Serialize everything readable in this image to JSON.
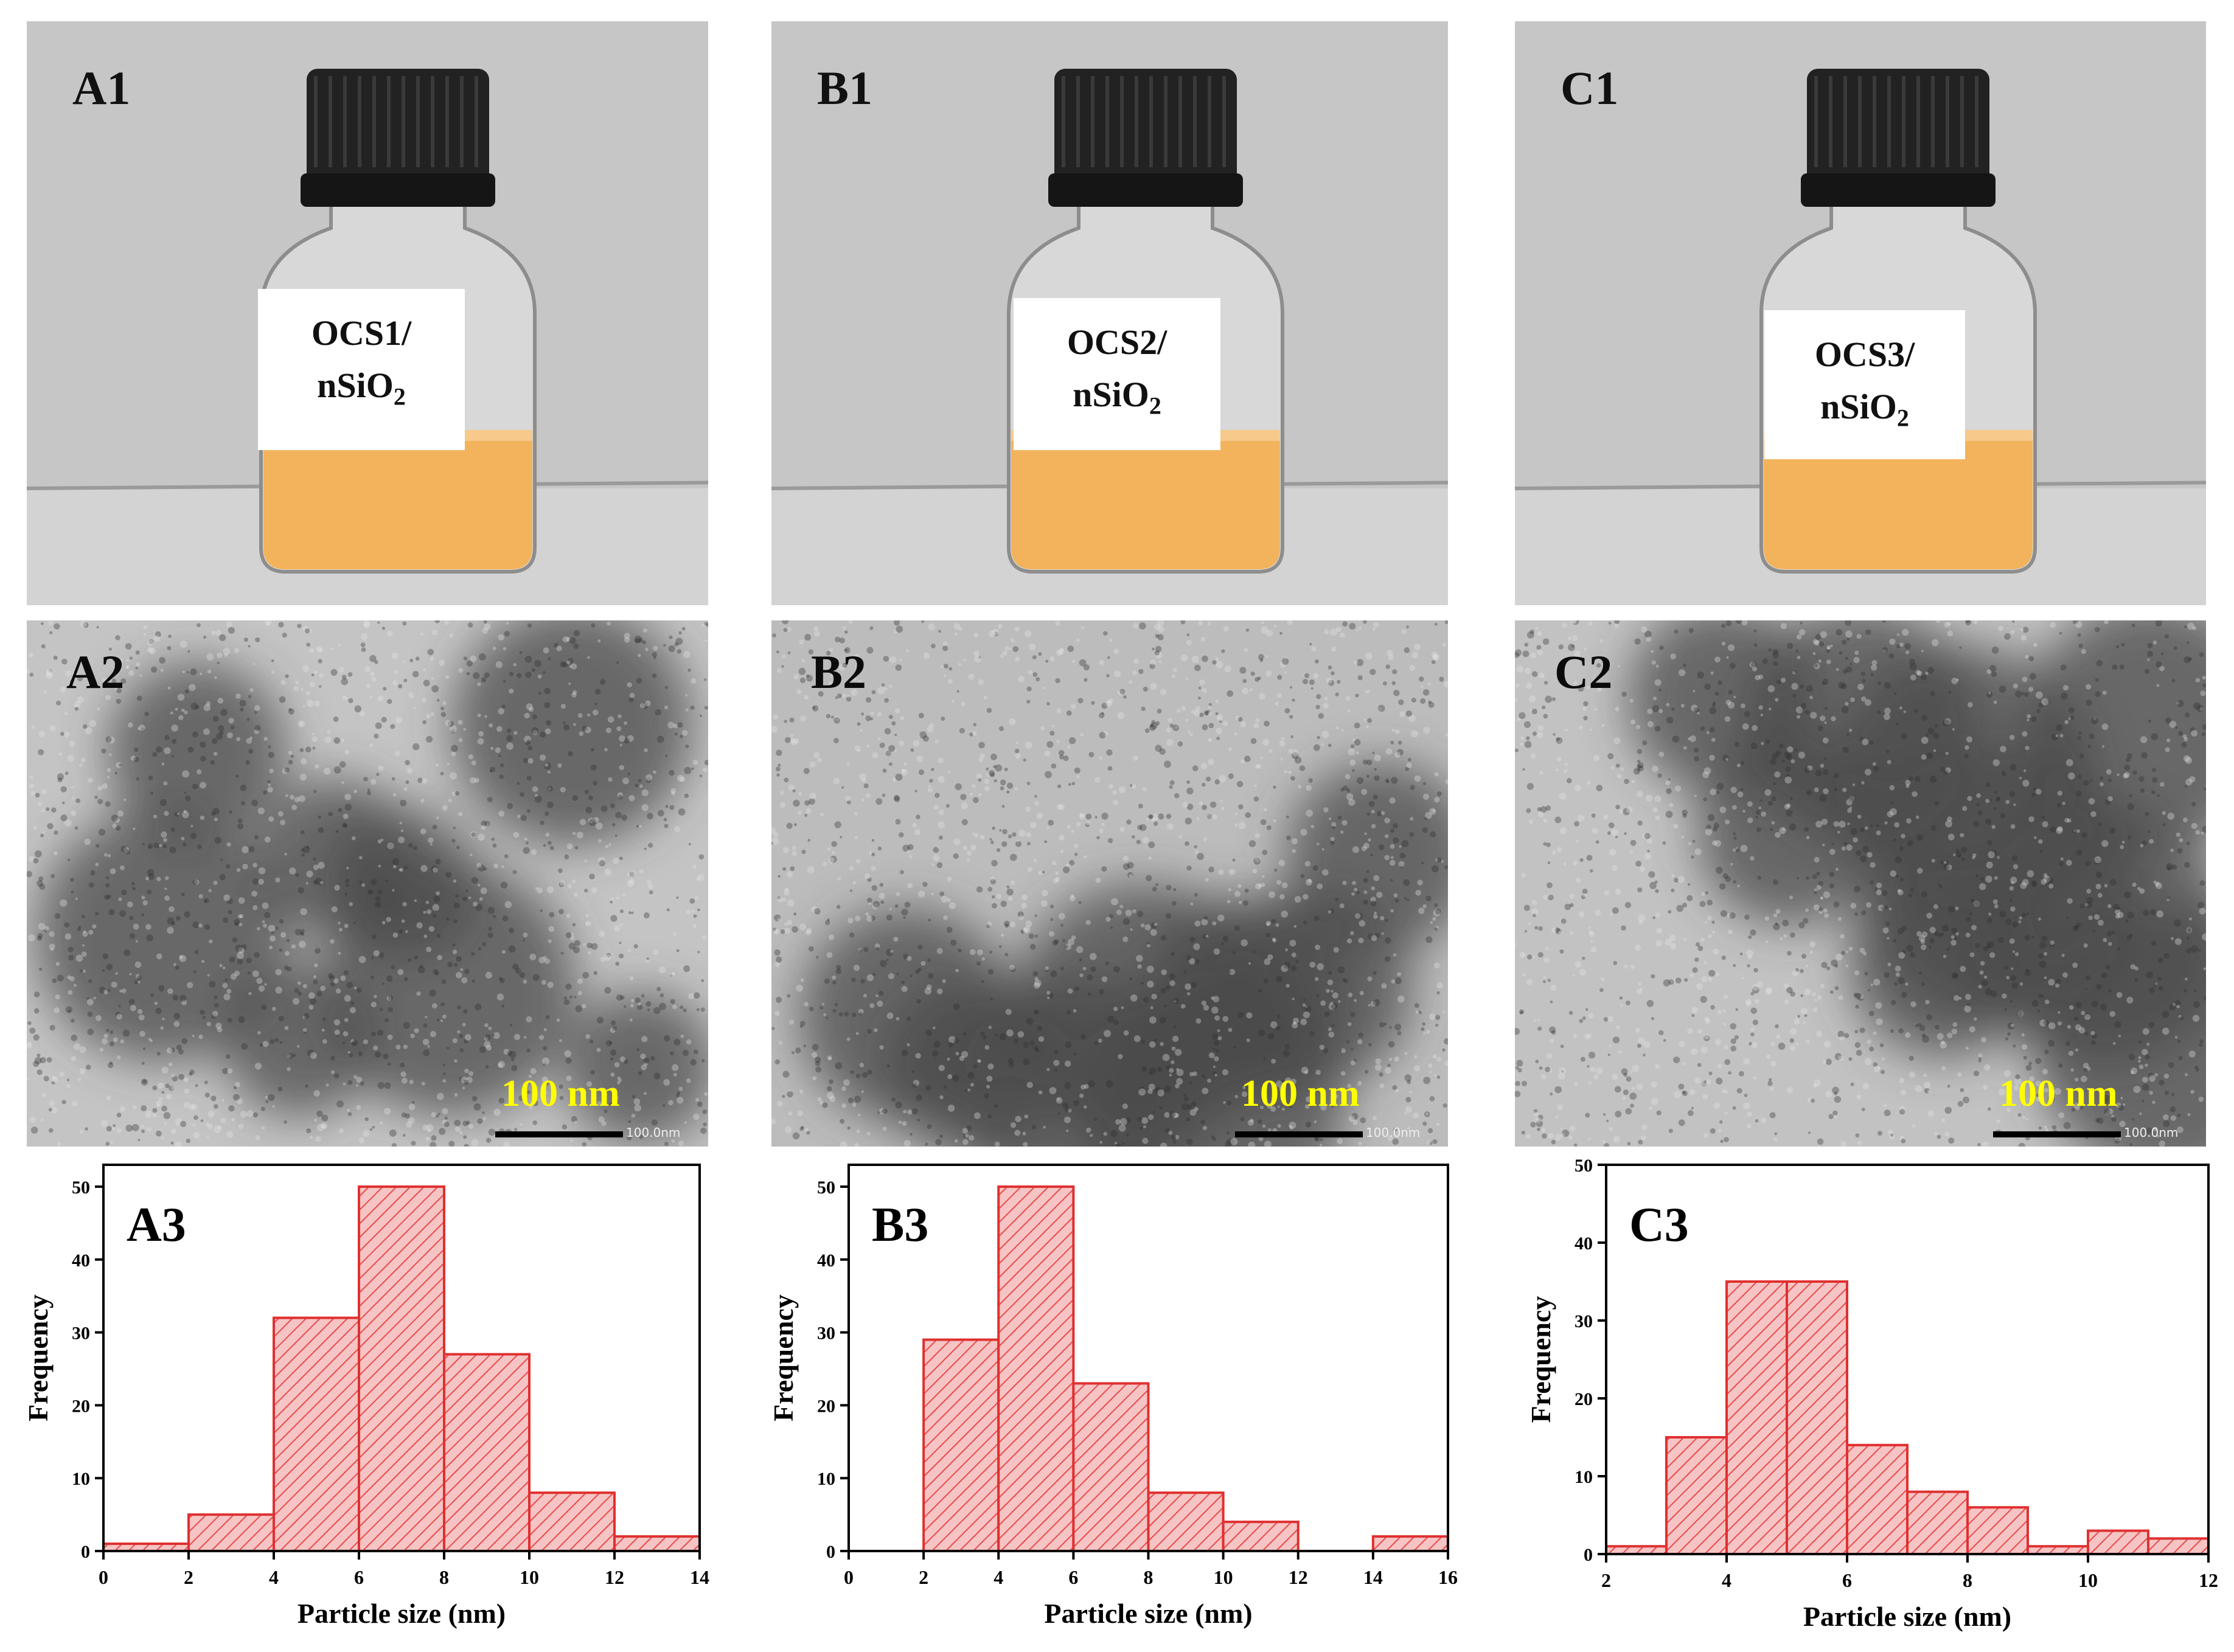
{
  "photos": [
    {
      "label": "A1",
      "vial_text_line1": "OCS1/",
      "vial_text_line2_base": "nSiO",
      "vial_text_line2_sub": "2"
    },
    {
      "label": "B1",
      "vial_text_line1": "OCS2/",
      "vial_text_line2_base": "nSiO",
      "vial_text_line2_sub": "2"
    },
    {
      "label": "C1",
      "vial_text_line1": "OCS3/",
      "vial_text_line2_base": "nSiO",
      "vial_text_line2_sub": "2"
    }
  ],
  "tem": [
    {
      "label": "A2",
      "scale_label": "100 nm",
      "scale_tiny": "100.0nm"
    },
    {
      "label": "B2",
      "scale_label": "100 nm",
      "scale_tiny": "100.0nm"
    },
    {
      "label": "C2",
      "scale_label": "100 nm",
      "scale_tiny": "100.0nm"
    }
  ],
  "colors": {
    "bar_fill": "#f6c4c4",
    "bar_stroke": "#e03030",
    "hatch": "#e84a4a",
    "liquid": "#f2b35c",
    "cap": "#222222",
    "scale_text": "#ffff00"
  },
  "chart_data": [
    {
      "type": "bar",
      "label": "A3",
      "xlabel": "Particle size (nm)",
      "ylabel": "Frequency",
      "bin_edges": [
        0,
        2,
        4,
        6,
        8,
        10,
        12,
        14
      ],
      "values": [
        1,
        5,
        32,
        50,
        27,
        8,
        2
      ],
      "xlim": [
        0,
        14
      ],
      "ylim": [
        0,
        53
      ],
      "xticks": [
        0,
        2,
        4,
        6,
        8,
        10,
        12,
        14
      ],
      "yticks": [
        0,
        10,
        20,
        30,
        40,
        50
      ]
    },
    {
      "type": "bar",
      "label": "B3",
      "xlabel": "Particle size (nm)",
      "ylabel": "Frequency",
      "bin_edges": [
        0,
        2,
        4,
        6,
        8,
        10,
        12,
        14,
        16
      ],
      "values": [
        0,
        29,
        50,
        23,
        8,
        4,
        0,
        2
      ],
      "xlim": [
        0,
        16
      ],
      "ylim": [
        0,
        53
      ],
      "xticks": [
        0,
        2,
        4,
        6,
        8,
        10,
        12,
        14,
        16
      ],
      "yticks": [
        0,
        10,
        20,
        30,
        40,
        50
      ]
    },
    {
      "type": "bar",
      "label": "C3",
      "xlabel": "Particle size (nm)",
      "ylabel": "Frequency",
      "bin_edges": [
        2,
        3,
        4,
        5,
        6,
        7,
        8,
        9,
        10,
        11,
        12
      ],
      "values": [
        1,
        15,
        35,
        35,
        14,
        8,
        6,
        1,
        3,
        2
      ],
      "xlim": [
        2,
        12
      ],
      "ylim": [
        0,
        50
      ],
      "xticks": [
        2,
        4,
        6,
        8,
        10,
        12
      ],
      "yticks": [
        0,
        10,
        20,
        30,
        40,
        50
      ]
    }
  ]
}
